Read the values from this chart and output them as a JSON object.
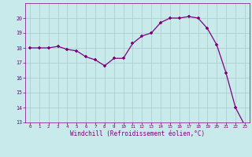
{
  "x": [
    0,
    1,
    2,
    3,
    4,
    5,
    6,
    7,
    8,
    9,
    10,
    11,
    12,
    13,
    14,
    15,
    16,
    17,
    18,
    19,
    20,
    21,
    22,
    23
  ],
  "y": [
    18.0,
    18.0,
    18.0,
    18.1,
    17.9,
    17.8,
    17.4,
    17.2,
    16.8,
    17.3,
    17.3,
    18.3,
    18.8,
    19.0,
    19.7,
    20.0,
    20.0,
    20.1,
    20.0,
    19.3,
    18.2,
    16.3,
    14.0,
    12.8
  ],
  "line_color": "#800080",
  "marker": "+",
  "marker_color": "#800080",
  "bg_color": "#c8eaea",
  "grid_color": "#a8caca",
  "xlabel": "Windchill (Refroidissement éolien,°C)",
  "xlabel_color": "#800080",
  "tick_color": "#800080",
  "ylim": [
    13,
    21
  ],
  "xlim": [
    -0.5,
    23.5
  ],
  "yticks": [
    13,
    14,
    15,
    16,
    17,
    18,
    19,
    20
  ],
  "xticks": [
    0,
    1,
    2,
    3,
    4,
    5,
    6,
    7,
    8,
    9,
    10,
    11,
    12,
    13,
    14,
    15,
    16,
    17,
    18,
    19,
    20,
    21,
    22,
    23
  ],
  "title_color": "#800080",
  "spine_color": "#800080"
}
